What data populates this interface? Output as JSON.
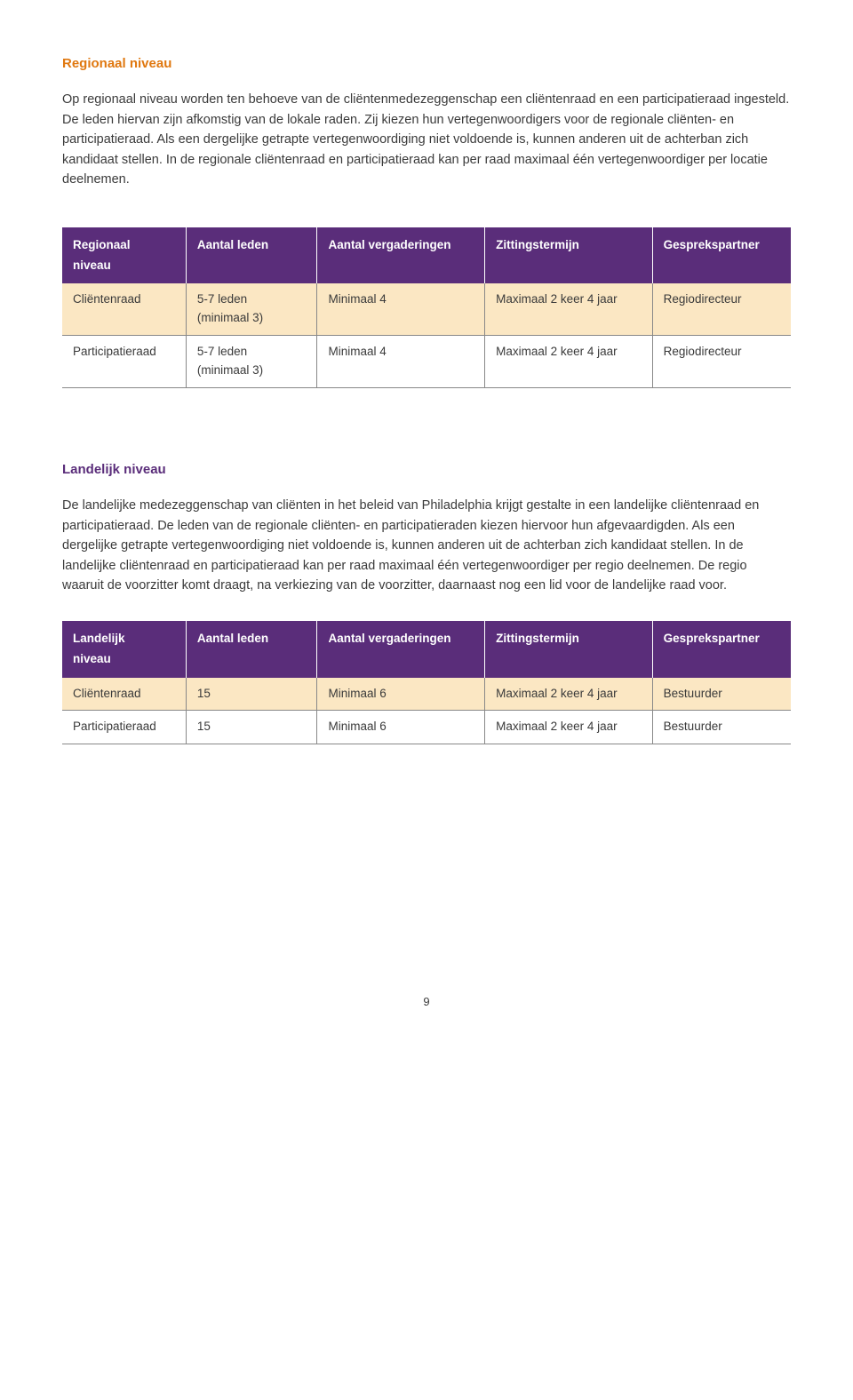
{
  "colors": {
    "orange": "#e07810",
    "purple": "#5a2d7a",
    "highlight_row": "#fbe7c3",
    "text": "#3a3a3a",
    "border": "#888888",
    "header_bg": "#5a2d7a",
    "header_text": "#ffffff"
  },
  "section1": {
    "heading": "Regionaal niveau",
    "body": "Op regionaal niveau worden ten behoeve van de cliëntenmedezeggenschap een cliëntenraad en een participatieraad ingesteld. De leden hiervan zijn afkomstig van de lokale raden. Zij kiezen hun vertegenwoordigers voor de regionale cliënten- en participatieraad. Als een dergelijke getrapte vertegenwoordiging niet voldoende is, kunnen anderen uit de achterban zich kandidaat stellen. In de regionale cliëntenraad en participatieraad kan per raad maximaal één vertegenwoordiger per locatie deelnemen."
  },
  "table1": {
    "headers": {
      "corner_top": "Regionaal",
      "corner_bottom": "niveau",
      "c2": "Aantal leden",
      "c3": "Aantal vergaderingen",
      "c4": "Zittingstermijn",
      "c5": "Gesprekspartner"
    },
    "rows": [
      {
        "c1": "Cliëntenraad",
        "c2a": "5-7 leden",
        "c2b": "(minimaal 3)",
        "c3": "Minimaal 4",
        "c4": "Maximaal 2 keer 4 jaar",
        "c5": "Regiodirecteur",
        "highlight": true
      },
      {
        "c1": "Participatieraad",
        "c2a": "5-7 leden",
        "c2b": "(minimaal 3)",
        "c3": "Minimaal 4",
        "c4": "Maximaal 2 keer 4 jaar",
        "c5": "Regiodirecteur",
        "highlight": false
      }
    ]
  },
  "section2": {
    "heading": "Landelijk niveau",
    "body": "De landelijke medezeggenschap van cliënten in het beleid van Philadelphia krijgt gestalte in een landelijke cliëntenraad en participatieraad. De leden van de regionale cliënten- en participatieraden kiezen hiervoor hun afgevaardigden. Als een dergelijke getrapte vertegenwoordiging niet voldoende is, kunnen anderen uit de achterban zich kandidaat stellen. In de landelijke cliëntenraad en participatieraad kan per raad maximaal één vertegenwoordiger per regio deelnemen. De regio waaruit de voorzitter komt draagt, na verkiezing van de voorzitter, daarnaast nog een lid voor de landelijke raad voor."
  },
  "table2": {
    "headers": {
      "corner_top": "Landelijk",
      "corner_bottom": "niveau",
      "c2": "Aantal leden",
      "c3": "Aantal vergaderingen",
      "c4": "Zittingstermijn",
      "c5": "Gesprekspartner"
    },
    "rows": [
      {
        "c1": "Cliëntenraad",
        "c2a": "15",
        "c2b": "",
        "c3": "Minimaal 6",
        "c4": "Maximaal 2 keer 4 jaar",
        "c5": "Bestuurder",
        "highlight": true
      },
      {
        "c1": "Participatieraad",
        "c2a": "15",
        "c2b": "",
        "c3": "Minimaal 6",
        "c4": "Maximaal 2 keer 4 jaar",
        "c5": "Bestuurder",
        "highlight": false
      }
    ]
  },
  "page_number": "9"
}
